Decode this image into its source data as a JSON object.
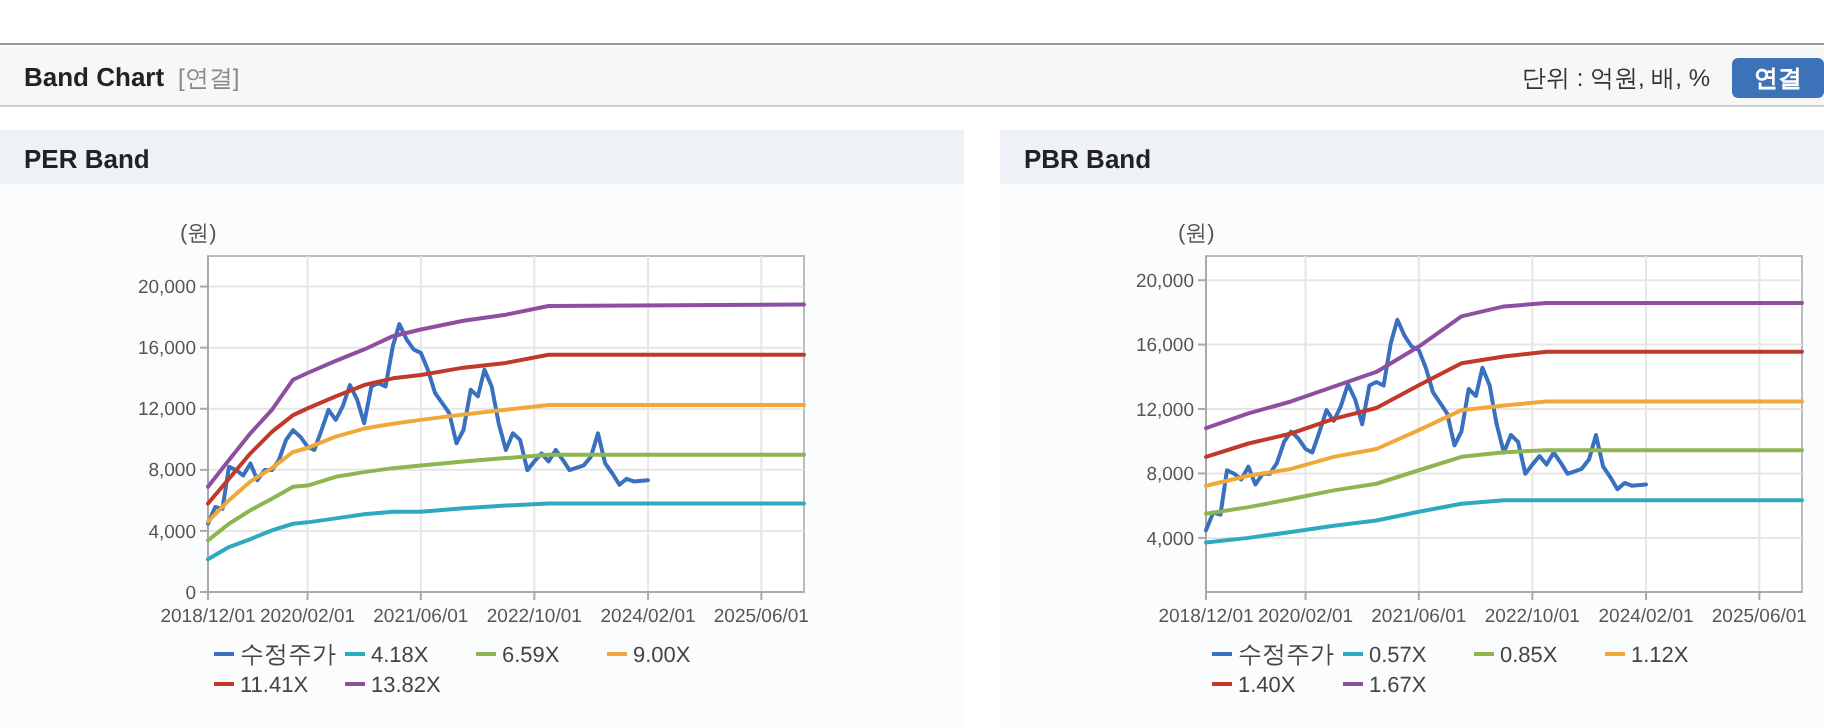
{
  "chart_data": [
    {
      "type": "line",
      "title": "PER Band",
      "ylabel": "(원)",
      "annotations": [
        "Band Chart",
        "[연결]",
        "단위 : 억원, 배, %",
        "연결"
      ],
      "xlim": [
        "2018-12-01",
        "2025-12-01"
      ],
      "xticks": [
        {
          "value": "2018-12-01",
          "label": "2018/12/01"
        },
        {
          "value": "2020-02-01",
          "label": "2020/02/01"
        },
        {
          "value": "2021-06-01",
          "label": "2021/06/01"
        },
        {
          "value": "2022-10-01",
          "label": "2022/10/01"
        },
        {
          "value": "2024-02-01",
          "label": "2024/02/01"
        },
        {
          "value": "2025-06-01",
          "label": "2025/06/01"
        }
      ],
      "ylim": [
        0,
        22000
      ],
      "yticks": [
        0,
        {
          "value": 4000,
          "label": "4,000"
        },
        {
          "value": 8000,
          "label": "8,000"
        },
        {
          "value": 12000,
          "label": "12,000"
        },
        {
          "value": 16000,
          "label": "16,000"
        },
        {
          "value": 20000,
          "label": "20,000"
        }
      ],
      "grid": true,
      "legend": "bottom",
      "marker": "none",
      "line_style": "solid",
      "series": [
        {
          "name": "수정주가",
          "color": "#3a70c0",
          "x": [
            "2018-12",
            "2019-01",
            "2019-02",
            "2019-03",
            "2019-04",
            "2019-05",
            "2019-06",
            "2019-07",
            "2019-08",
            "2019-09",
            "2019-10",
            "2019-11",
            "2019-12",
            "2020-01",
            "2020-02",
            "2020-03",
            "2020-04",
            "2020-05",
            "2020-06",
            "2020-07",
            "2020-08",
            "2020-09",
            "2020-10",
            "2020-11",
            "2020-12",
            "2021-01",
            "2021-02",
            "2021-03",
            "2021-04",
            "2021-05",
            "2021-06",
            "2021-07",
            "2021-08",
            "2021-09",
            "2021-10",
            "2021-11",
            "2021-12",
            "2022-01",
            "2022-02",
            "2022-03",
            "2022-04",
            "2022-05",
            "2022-06",
            "2022-07",
            "2022-08",
            "2022-09",
            "2022-10",
            "2022-11",
            "2022-12",
            "2023-01",
            "2023-02",
            "2023-03",
            "2023-05",
            "2023-06",
            "2023-07",
            "2023-08",
            "2023-09",
            "2023-10",
            "2023-11",
            "2023-12",
            "2024-02"
          ],
          "values": [
            4470,
            5570,
            5440,
            8200,
            7980,
            7630,
            8420,
            7320,
            7980,
            7980,
            8640,
            9960,
            10600,
            10170,
            9520,
            9300,
            10600,
            11930,
            11270,
            12150,
            13550,
            12590,
            11050,
            13460,
            13680,
            13460,
            16100,
            17540,
            16540,
            15880,
            15660,
            14560,
            13030,
            12370,
            11710,
            9740,
            10610,
            13240,
            12810,
            14560,
            13460,
            11050,
            9300,
            10390,
            9960,
            7980,
            8550,
            9080,
            8550,
            9300,
            8640,
            7980,
            8290,
            8860,
            10390,
            8420,
            7760,
            7020,
            7410,
            7240,
            7320
          ]
        },
        {
          "name": "4.18X",
          "color": "#2eaac0",
          "x": [
            "2018-12",
            "2019-03",
            "2019-06",
            "2019-09",
            "2019-12",
            "2020-02",
            "2020-06",
            "2020-10",
            "2021-02",
            "2021-06",
            "2021-12",
            "2022-06",
            "2022-12",
            "2025-12"
          ],
          "values": [
            2150,
            2940,
            3460,
            4040,
            4470,
            4560,
            4820,
            5090,
            5260,
            5260,
            5480,
            5660,
            5790,
            5790
          ]
        },
        {
          "name": "6.59X",
          "color": "#8db550",
          "x": [
            "2018-12",
            "2019-03",
            "2019-06",
            "2019-09",
            "2019-12",
            "2020-02",
            "2020-06",
            "2020-10",
            "2021-02",
            "2021-06",
            "2021-12",
            "2022-06",
            "2022-12",
            "2025-12"
          ],
          "values": [
            3380,
            4470,
            5350,
            6100,
            6890,
            6970,
            7540,
            7850,
            8110,
            8290,
            8550,
            8770,
            8990,
            8990
          ]
        },
        {
          "name": "9.00X",
          "color": "#f0a83a",
          "x": [
            "2018-12",
            "2019-03",
            "2019-06",
            "2019-09",
            "2019-12",
            "2020-02",
            "2020-06",
            "2020-10",
            "2021-02",
            "2021-06",
            "2021-12",
            "2022-06",
            "2022-12",
            "2025-12"
          ],
          "values": [
            4610,
            6010,
            7240,
            8110,
            9170,
            9430,
            10170,
            10700,
            11010,
            11270,
            11620,
            11930,
            12240,
            12240
          ]
        },
        {
          "name": "11.41X",
          "color": "#c0392b",
          "x": [
            "2018-12",
            "2019-03",
            "2019-06",
            "2019-09",
            "2019-12",
            "2020-02",
            "2020-06",
            "2020-10",
            "2021-02",
            "2021-06",
            "2021-12",
            "2022-06",
            "2022-12",
            "2025-12"
          ],
          "values": [
            5790,
            7410,
            9080,
            10480,
            11580,
            12020,
            12810,
            13550,
            13990,
            14210,
            14690,
            15000,
            15530,
            15530
          ]
        },
        {
          "name": "13.82X",
          "color": "#8e4fa0",
          "x": [
            "2018-12",
            "2019-03",
            "2019-06",
            "2019-09",
            "2019-12",
            "2020-02",
            "2020-06",
            "2020-10",
            "2021-02",
            "2021-06",
            "2021-12",
            "2022-06",
            "2022-12",
            "2025-12"
          ],
          "values": [
            6890,
            8640,
            10390,
            11930,
            13900,
            14340,
            15130,
            15880,
            16750,
            17190,
            17760,
            18160,
            18730,
            18820
          ]
        }
      ]
    },
    {
      "type": "line",
      "title": "PBR Band",
      "ylabel": "(원)",
      "xlim": [
        "2018-12-01",
        "2025-12-01"
      ],
      "xticks": [
        {
          "value": "2018-12-01",
          "label": "2018/12/01"
        },
        {
          "value": "2020-02-01",
          "label": "2020/02/01"
        },
        {
          "value": "2021-06-01",
          "label": "2021/06/01"
        },
        {
          "value": "2022-10-01",
          "label": "2022/10/01"
        },
        {
          "value": "2024-02-01",
          "label": "2024/02/01"
        },
        {
          "value": "2025-06-01",
          "label": "2025/06/01"
        }
      ],
      "ylim": [
        640,
        21500
      ],
      "yticks": [
        {
          "value": 4000,
          "label": "4,000"
        },
        {
          "value": 8000,
          "label": "8,000"
        },
        {
          "value": 12000,
          "label": "12,000"
        },
        {
          "value": 16000,
          "label": "16,000"
        },
        {
          "value": 20000,
          "label": "20,000"
        }
      ],
      "grid": true,
      "legend": "bottom",
      "marker": "none",
      "line_style": "solid",
      "series": [
        {
          "name": "수정주가",
          "color": "#3a70c0",
          "x": [
            "2018-12",
            "2019-01",
            "2019-02",
            "2019-03",
            "2019-04",
            "2019-05",
            "2019-06",
            "2019-07",
            "2019-08",
            "2019-09",
            "2019-10",
            "2019-11",
            "2019-12",
            "2020-01",
            "2020-02",
            "2020-03",
            "2020-04",
            "2020-05",
            "2020-06",
            "2020-07",
            "2020-08",
            "2020-09",
            "2020-10",
            "2020-11",
            "2020-12",
            "2021-01",
            "2021-02",
            "2021-03",
            "2021-04",
            "2021-05",
            "2021-06",
            "2021-07",
            "2021-08",
            "2021-09",
            "2021-10",
            "2021-11",
            "2021-12",
            "2022-01",
            "2022-02",
            "2022-03",
            "2022-04",
            "2022-05",
            "2022-06",
            "2022-07",
            "2022-08",
            "2022-09",
            "2022-10",
            "2022-11",
            "2022-12",
            "2023-01",
            "2023-02",
            "2023-03",
            "2023-05",
            "2023-06",
            "2023-07",
            "2023-08",
            "2023-09",
            "2023-10",
            "2023-11",
            "2023-12",
            "2024-02"
          ],
          "values": [
            4470,
            5570,
            5440,
            8200,
            7980,
            7630,
            8420,
            7320,
            7980,
            7980,
            8640,
            9960,
            10600,
            10170,
            9520,
            9300,
            10600,
            11930,
            11270,
            12150,
            13550,
            12590,
            11050,
            13460,
            13680,
            13460,
            16100,
            17540,
            16540,
            15880,
            15660,
            14560,
            13030,
            12370,
            11710,
            9740,
            10610,
            13240,
            12810,
            14560,
            13460,
            11050,
            9300,
            10390,
            9960,
            7980,
            8550,
            9080,
            8550,
            9300,
            8640,
            7980,
            8290,
            8860,
            10390,
            8420,
            7760,
            7020,
            7410,
            7240,
            7320
          ]
        },
        {
          "name": "0.57X",
          "color": "#2eaac0",
          "x": [
            "2018-12",
            "2019-06",
            "2019-12",
            "2020-06",
            "2020-12",
            "2021-06",
            "2021-12",
            "2022-06",
            "2022-12",
            "2025-12"
          ],
          "values": [
            3710,
            4000,
            4370,
            4750,
            5080,
            5620,
            6120,
            6330,
            6330,
            6330
          ]
        },
        {
          "name": "0.85X",
          "color": "#8db550",
          "x": [
            "2018-12",
            "2019-06",
            "2019-12",
            "2020-06",
            "2020-12",
            "2021-06",
            "2021-12",
            "2022-06",
            "2022-12",
            "2025-12"
          ],
          "values": [
            5500,
            5910,
            6410,
            6950,
            7360,
            8200,
            9030,
            9320,
            9440,
            9440
          ]
        },
        {
          "name": "1.12X",
          "color": "#f0a83a",
          "x": [
            "2018-12",
            "2019-06",
            "2019-12",
            "2020-06",
            "2020-12",
            "2021-06",
            "2021-12",
            "2022-06",
            "2022-12",
            "2025-12"
          ],
          "values": [
            7240,
            7860,
            8280,
            9030,
            9520,
            10690,
            11930,
            12220,
            12470,
            12470
          ]
        },
        {
          "name": "1.40X",
          "color": "#c0392b",
          "x": [
            "2018-12",
            "2019-06",
            "2019-12",
            "2020-06",
            "2020-12",
            "2021-06",
            "2021-12",
            "2022-06",
            "2022-12",
            "2025-12"
          ],
          "values": [
            9030,
            9860,
            10480,
            11390,
            12060,
            13470,
            14840,
            15260,
            15550,
            15550
          ]
        },
        {
          "name": "1.67X",
          "color": "#8e4fa0",
          "x": [
            "2018-12",
            "2019-06",
            "2019-12",
            "2020-06",
            "2020-12",
            "2021-06",
            "2021-12",
            "2022-06",
            "2022-12",
            "2025-12"
          ],
          "values": [
            10810,
            11730,
            12470,
            13390,
            14300,
            15880,
            17750,
            18370,
            18580,
            18580
          ]
        }
      ]
    }
  ]
}
